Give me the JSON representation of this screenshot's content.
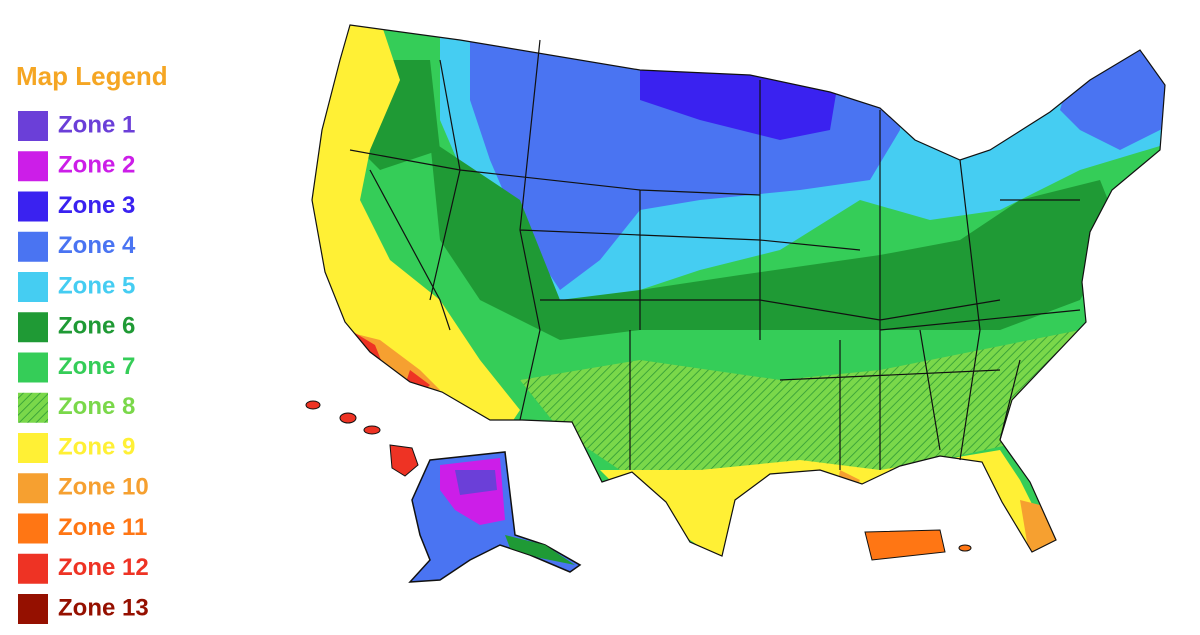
{
  "legend": {
    "title": "Map Legend",
    "items": [
      {
        "label": "Zone 1",
        "color": "#6b3fd8"
      },
      {
        "label": "Zone 2",
        "color": "#cc1ee8"
      },
      {
        "label": "Zone 3",
        "color": "#3a22f0"
      },
      {
        "label": "Zone 4",
        "color": "#4a74f2"
      },
      {
        "label": "Zone 5",
        "color": "#45cdf2"
      },
      {
        "label": "Zone 6",
        "color": "#1f9a35"
      },
      {
        "label": "Zone 7",
        "color": "#35cd58"
      },
      {
        "label": "Zone 8",
        "color": "#7ad84a",
        "hatched": true
      },
      {
        "label": "Zone 9",
        "color": "#fff035"
      },
      {
        "label": "Zone 10",
        "color": "#f6a030"
      },
      {
        "label": "Zone 11",
        "color": "#ff7614"
      },
      {
        "label": "Zone 12",
        "color": "#ee3324"
      },
      {
        "label": "Zone 13",
        "color": "#951000"
      }
    ]
  }
}
